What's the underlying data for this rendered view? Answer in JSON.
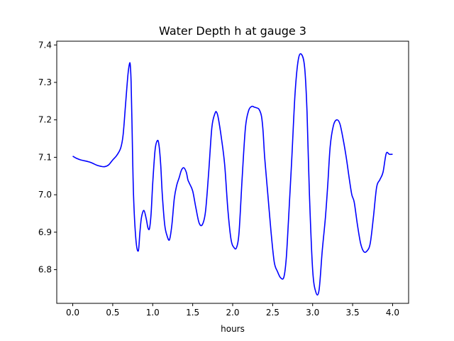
{
  "chart_data": {
    "type": "line",
    "title": "Water Depth h at gauge 3",
    "xlabel": "hours",
    "ylabel": "",
    "xlim": [
      -0.2,
      4.2
    ],
    "ylim": [
      6.71,
      7.41
    ],
    "grid": false,
    "x_ticks": [
      0.0,
      0.5,
      1.0,
      1.5,
      2.0,
      2.5,
      3.0,
      3.5,
      4.0
    ],
    "x_tick_labels": [
      "0.0",
      "0.5",
      "1.0",
      "1.5",
      "2.0",
      "2.5",
      "3.0",
      "3.5",
      "4.0"
    ],
    "y_ticks": [
      6.8,
      6.9,
      7.0,
      7.1,
      7.2,
      7.3,
      7.4
    ],
    "y_tick_labels": [
      "6.8",
      "6.9",
      "7.0",
      "7.1",
      "7.2",
      "7.3",
      "7.4"
    ],
    "series": [
      {
        "color": "#0000ff",
        "x": [
          0.0,
          0.05,
          0.1,
          0.2,
          0.25,
          0.3,
          0.35,
          0.4,
          0.45,
          0.5,
          0.55,
          0.6,
          0.63,
          0.66,
          0.69,
          0.71,
          0.72,
          0.73,
          0.74,
          0.76,
          0.79,
          0.82,
          0.84,
          0.86,
          0.89,
          0.92,
          0.94,
          0.96,
          0.98,
          1.0,
          1.03,
          1.06,
          1.08,
          1.1,
          1.12,
          1.15,
          1.18,
          1.21,
          1.24,
          1.27,
          1.3,
          1.33,
          1.36,
          1.39,
          1.42,
          1.44,
          1.46,
          1.5,
          1.54,
          1.58,
          1.62,
          1.66,
          1.7,
          1.74,
          1.78,
          1.8,
          1.82,
          1.86,
          1.9,
          1.94,
          1.98,
          2.02,
          2.05,
          2.08,
          2.12,
          2.16,
          2.2,
          2.24,
          2.27,
          2.3,
          2.33,
          2.36,
          2.38,
          2.4,
          2.44,
          2.48,
          2.52,
          2.56,
          2.6,
          2.64,
          2.67,
          2.7,
          2.74,
          2.78,
          2.82,
          2.86,
          2.9,
          2.93,
          2.96,
          3.0,
          3.04,
          3.08,
          3.12,
          3.16,
          3.19,
          3.22,
          3.26,
          3.3,
          3.34,
          3.38,
          3.42,
          3.46,
          3.49,
          3.52,
          3.56,
          3.6,
          3.64,
          3.68,
          3.72,
          3.76,
          3.8,
          3.84,
          3.88,
          3.92,
          3.96,
          4.0
        ],
        "y": [
          7.103,
          7.097,
          7.093,
          7.088,
          7.084,
          7.079,
          7.076,
          7.075,
          7.08,
          7.093,
          7.105,
          7.125,
          7.16,
          7.24,
          7.32,
          7.35,
          7.345,
          7.3,
          7.2,
          7.0,
          6.88,
          6.85,
          6.9,
          6.94,
          6.958,
          6.935,
          6.912,
          6.91,
          6.95,
          7.03,
          7.12,
          7.145,
          7.13,
          7.08,
          7.0,
          6.92,
          6.89,
          6.88,
          6.92,
          6.99,
          7.025,
          7.045,
          7.066,
          7.072,
          7.06,
          7.04,
          7.03,
          7.01,
          6.965,
          6.925,
          6.92,
          6.955,
          7.06,
          7.18,
          7.218,
          7.22,
          7.205,
          7.15,
          7.08,
          6.96,
          6.88,
          6.858,
          6.86,
          6.9,
          7.05,
          7.18,
          7.225,
          7.236,
          7.234,
          7.232,
          7.228,
          7.21,
          7.17,
          7.1,
          7.0,
          6.9,
          6.82,
          6.795,
          6.778,
          6.78,
          6.83,
          6.94,
          7.1,
          7.27,
          7.36,
          7.375,
          7.34,
          7.22,
          7.0,
          6.8,
          6.74,
          6.745,
          6.85,
          6.94,
          7.03,
          7.13,
          7.185,
          7.2,
          7.19,
          7.15,
          7.1,
          7.04,
          7.0,
          6.98,
          6.92,
          6.87,
          6.848,
          6.85,
          6.87,
          6.94,
          7.02,
          7.04,
          7.06,
          7.11,
          7.108,
          7.108
        ]
      }
    ]
  }
}
